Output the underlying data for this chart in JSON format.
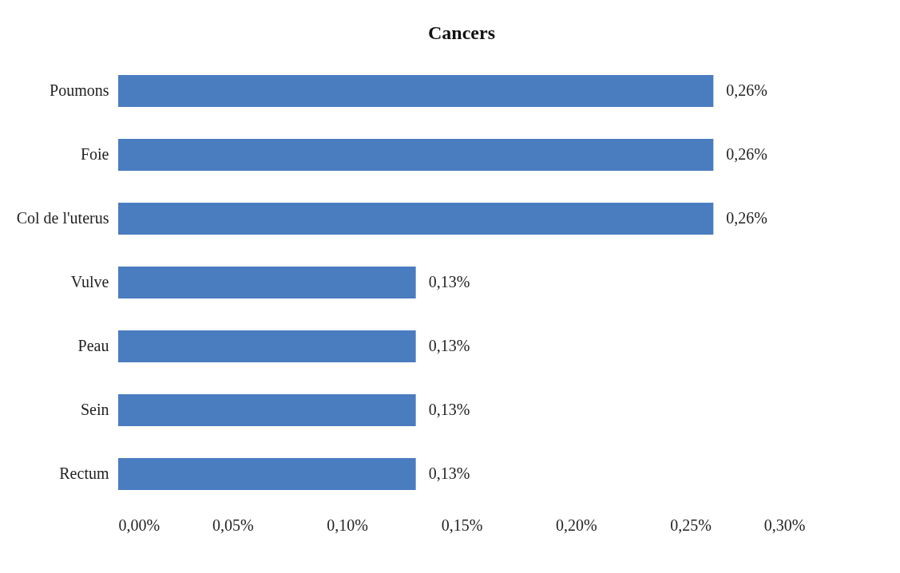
{
  "chart_data": {
    "type": "bar",
    "orientation": "horizontal",
    "title": "Cancers",
    "categories": [
      "Poumons",
      "Foie",
      "Col de l'uterus",
      "Vulve",
      "Peau",
      "Sein",
      "Rectum"
    ],
    "values": [
      0.26,
      0.26,
      0.26,
      0.13,
      0.13,
      0.13,
      0.13
    ],
    "value_labels": [
      "0,26%",
      "0,26%",
      "0,26%",
      "0,13%",
      "0,13%",
      "0,13%",
      "0,13%"
    ],
    "color": "#4a7cc0",
    "xlim": [
      0,
      0.3
    ],
    "xticks": [
      {
        "value": 0,
        "label": "0,00%"
      },
      {
        "value": 0.05,
        "label": "0,05%"
      },
      {
        "value": 0.1,
        "label": "0,10%"
      },
      {
        "value": 0.15,
        "label": "0,15%"
      },
      {
        "value": 0.2,
        "label": "0,20%"
      },
      {
        "value": 0.25,
        "label": "0,25%"
      },
      {
        "value": 0.3,
        "label": "0,30%"
      }
    ],
    "grid": false
  }
}
